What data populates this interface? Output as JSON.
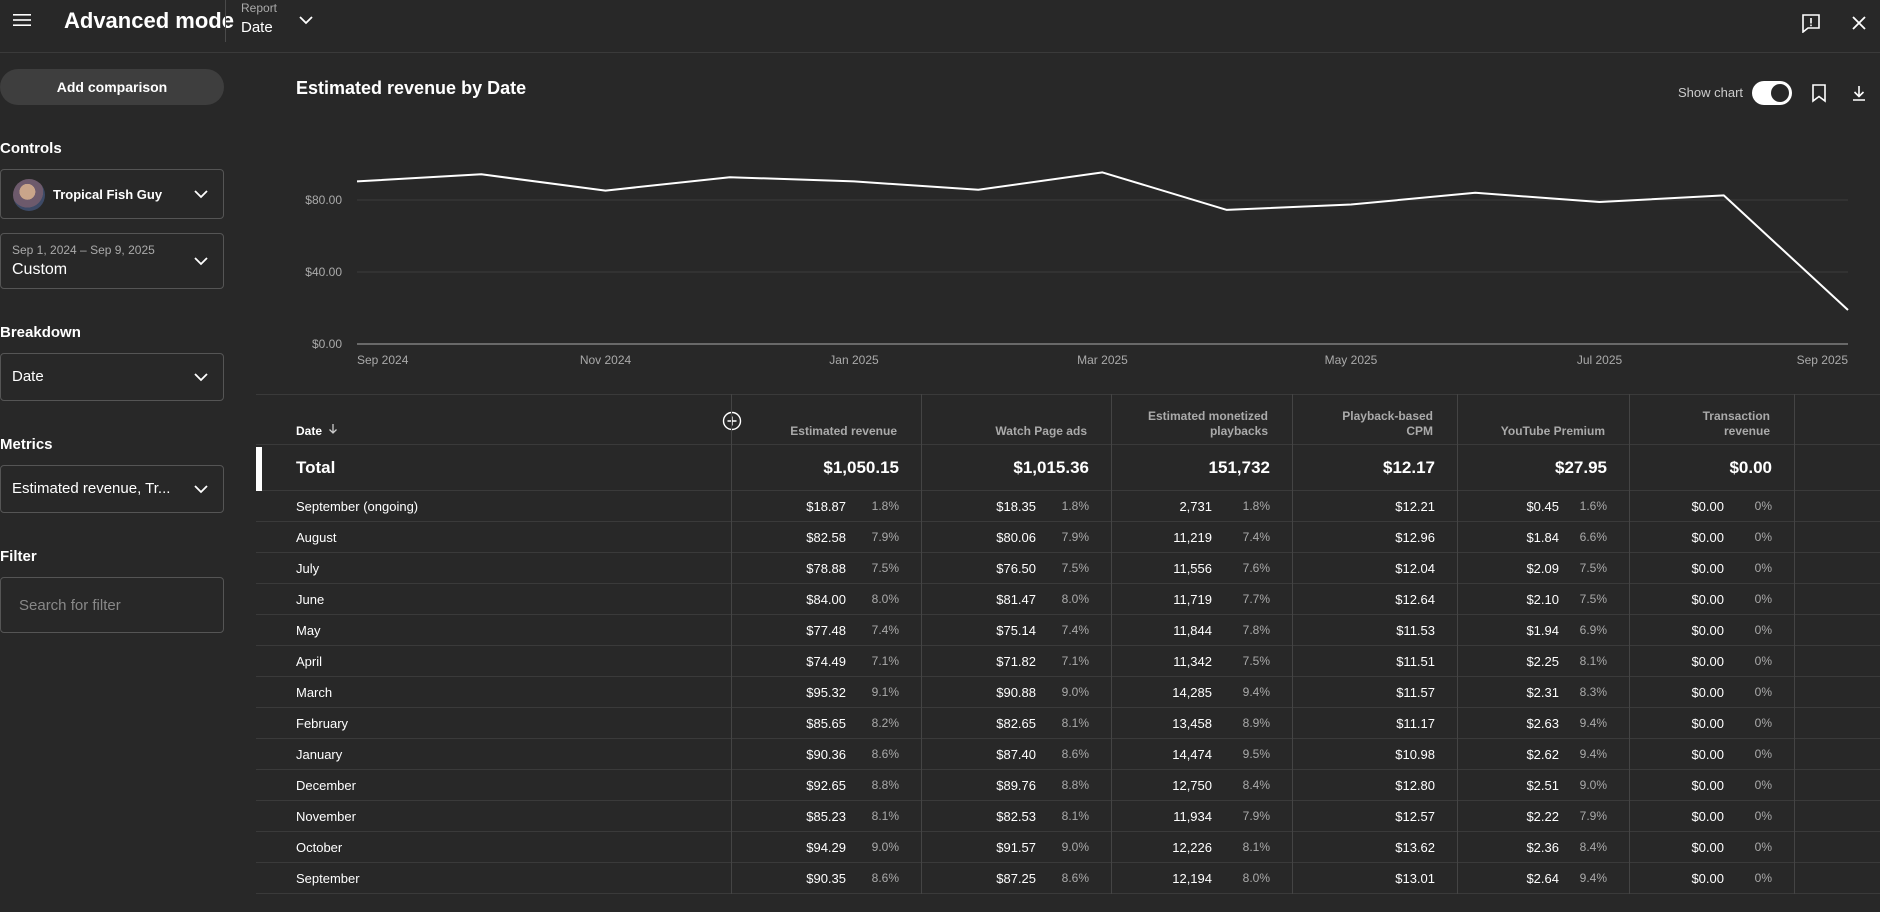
{
  "header": {
    "app_title": "Advanced mode",
    "report_label": "Report",
    "report_value": "Date",
    "icons": {
      "menu": "menu-icon",
      "dropdown": "chevron-down-icon",
      "feedback": "feedback-icon",
      "close": "close-icon"
    }
  },
  "sidebar": {
    "add_comparison": "Add comparison",
    "controls_label": "Controls",
    "channel_name": "Tropical Fish Guy",
    "date_range_dates": "Sep 1, 2024 – Sep 9, 2025",
    "date_range_type": "Custom",
    "breakdown_label": "Breakdown",
    "breakdown_value": "Date",
    "metrics_label": "Metrics",
    "metrics_value": "Estimated revenue, Tr...",
    "filter_label": "Filter",
    "filter_placeholder": "Search for filter"
  },
  "chart_panel": {
    "title": "Estimated revenue by Date",
    "show_chart_label": "Show chart",
    "show_chart_on": true
  },
  "chart_data": {
    "type": "line",
    "title": "Estimated revenue by Date",
    "x": [
      "Sep 2024",
      "Oct 2024",
      "Nov 2024",
      "Dec 2024",
      "Jan 2025",
      "Feb 2025",
      "Mar 2025",
      "Apr 2025",
      "May 2025",
      "Jun 2025",
      "Jul 2025",
      "Aug 2025",
      "Sep 2025"
    ],
    "x_tick_labels": [
      "Sep 2024",
      "Nov 2024",
      "Jan 2025",
      "Mar 2025",
      "May 2025",
      "Jul 2025",
      "Sep 2025"
    ],
    "series": [
      {
        "values": [
          90.35,
          94.29,
          85.23,
          92.65,
          90.36,
          85.65,
          95.32,
          74.49,
          77.48,
          84.0,
          78.88,
          82.58,
          18.87
        ]
      }
    ],
    "ylim": [
      0,
      120
    ],
    "y_ticks": [
      0,
      40,
      80
    ],
    "y_tick_labels": [
      "$0.00",
      "$40.00",
      "$80.00"
    ],
    "grid": true,
    "line_color": "#ffffff"
  },
  "table": {
    "date_header": "Date",
    "columns": [
      {
        "label_lines": [
          "Estimated revenue"
        ],
        "total": "$1,050.15"
      },
      {
        "label_lines": [
          "Watch Page ads"
        ],
        "total": "$1,015.36"
      },
      {
        "label_lines": [
          "Estimated monetized",
          "playbacks"
        ],
        "total": "151,732"
      },
      {
        "label_lines": [
          "Playback-based",
          "CPM"
        ],
        "total": "$12.17"
      },
      {
        "label_lines": [
          "YouTube Premium"
        ],
        "total": "$27.95"
      },
      {
        "label_lines": [
          "Transaction",
          "revenue"
        ],
        "total": "$0.00"
      }
    ],
    "total_label": "Total",
    "rows": [
      {
        "label": "September (ongoing)",
        "cells": [
          [
            "$18.87",
            "1.8%"
          ],
          [
            "$18.35",
            "1.8%"
          ],
          [
            "2,731",
            "1.8%"
          ],
          [
            "$12.21",
            ""
          ],
          [
            "$0.45",
            "1.6%"
          ],
          [
            "$0.00",
            "0%"
          ]
        ]
      },
      {
        "label": "August",
        "cells": [
          [
            "$82.58",
            "7.9%"
          ],
          [
            "$80.06",
            "7.9%"
          ],
          [
            "11,219",
            "7.4%"
          ],
          [
            "$12.96",
            ""
          ],
          [
            "$1.84",
            "6.6%"
          ],
          [
            "$0.00",
            "0%"
          ]
        ]
      },
      {
        "label": "July",
        "cells": [
          [
            "$78.88",
            "7.5%"
          ],
          [
            "$76.50",
            "7.5%"
          ],
          [
            "11,556",
            "7.6%"
          ],
          [
            "$12.04",
            ""
          ],
          [
            "$2.09",
            "7.5%"
          ],
          [
            "$0.00",
            "0%"
          ]
        ]
      },
      {
        "label": "June",
        "cells": [
          [
            "$84.00",
            "8.0%"
          ],
          [
            "$81.47",
            "8.0%"
          ],
          [
            "11,719",
            "7.7%"
          ],
          [
            "$12.64",
            ""
          ],
          [
            "$2.10",
            "7.5%"
          ],
          [
            "$0.00",
            "0%"
          ]
        ]
      },
      {
        "label": "May",
        "cells": [
          [
            "$77.48",
            "7.4%"
          ],
          [
            "$75.14",
            "7.4%"
          ],
          [
            "11,844",
            "7.8%"
          ],
          [
            "$11.53",
            ""
          ],
          [
            "$1.94",
            "6.9%"
          ],
          [
            "$0.00",
            "0%"
          ]
        ]
      },
      {
        "label": "April",
        "cells": [
          [
            "$74.49",
            "7.1%"
          ],
          [
            "$71.82",
            "7.1%"
          ],
          [
            "11,342",
            "7.5%"
          ],
          [
            "$11.51",
            ""
          ],
          [
            "$2.25",
            "8.1%"
          ],
          [
            "$0.00",
            "0%"
          ]
        ]
      },
      {
        "label": "March",
        "cells": [
          [
            "$95.32",
            "9.1%"
          ],
          [
            "$90.88",
            "9.0%"
          ],
          [
            "14,285",
            "9.4%"
          ],
          [
            "$11.57",
            ""
          ],
          [
            "$2.31",
            "8.3%"
          ],
          [
            "$0.00",
            "0%"
          ]
        ]
      },
      {
        "label": "February",
        "cells": [
          [
            "$85.65",
            "8.2%"
          ],
          [
            "$82.65",
            "8.1%"
          ],
          [
            "13,458",
            "8.9%"
          ],
          [
            "$11.17",
            ""
          ],
          [
            "$2.63",
            "9.4%"
          ],
          [
            "$0.00",
            "0%"
          ]
        ]
      },
      {
        "label": "January",
        "cells": [
          [
            "$90.36",
            "8.6%"
          ],
          [
            "$87.40",
            "8.6%"
          ],
          [
            "14,474",
            "9.5%"
          ],
          [
            "$10.98",
            ""
          ],
          [
            "$2.62",
            "9.4%"
          ],
          [
            "$0.00",
            "0%"
          ]
        ]
      },
      {
        "label": "December",
        "cells": [
          [
            "$92.65",
            "8.8%"
          ],
          [
            "$89.76",
            "8.8%"
          ],
          [
            "12,750",
            "8.4%"
          ],
          [
            "$12.80",
            ""
          ],
          [
            "$2.51",
            "9.0%"
          ],
          [
            "$0.00",
            "0%"
          ]
        ]
      },
      {
        "label": "November",
        "cells": [
          [
            "$85.23",
            "8.1%"
          ],
          [
            "$82.53",
            "8.1%"
          ],
          [
            "11,934",
            "7.9%"
          ],
          [
            "$12.57",
            ""
          ],
          [
            "$2.22",
            "7.9%"
          ],
          [
            "$0.00",
            "0%"
          ]
        ]
      },
      {
        "label": "October",
        "cells": [
          [
            "$94.29",
            "9.0%"
          ],
          [
            "$91.57",
            "9.0%"
          ],
          [
            "12,226",
            "8.1%"
          ],
          [
            "$13.62",
            ""
          ],
          [
            "$2.36",
            "8.4%"
          ],
          [
            "$0.00",
            "0%"
          ]
        ]
      },
      {
        "label": "September",
        "cells": [
          [
            "$90.35",
            "8.6%"
          ],
          [
            "$87.25",
            "8.6%"
          ],
          [
            "12,194",
            "8.0%"
          ],
          [
            "$13.01",
            ""
          ],
          [
            "$2.64",
            "9.4%"
          ],
          [
            "$0.00",
            "0%"
          ]
        ]
      }
    ]
  }
}
